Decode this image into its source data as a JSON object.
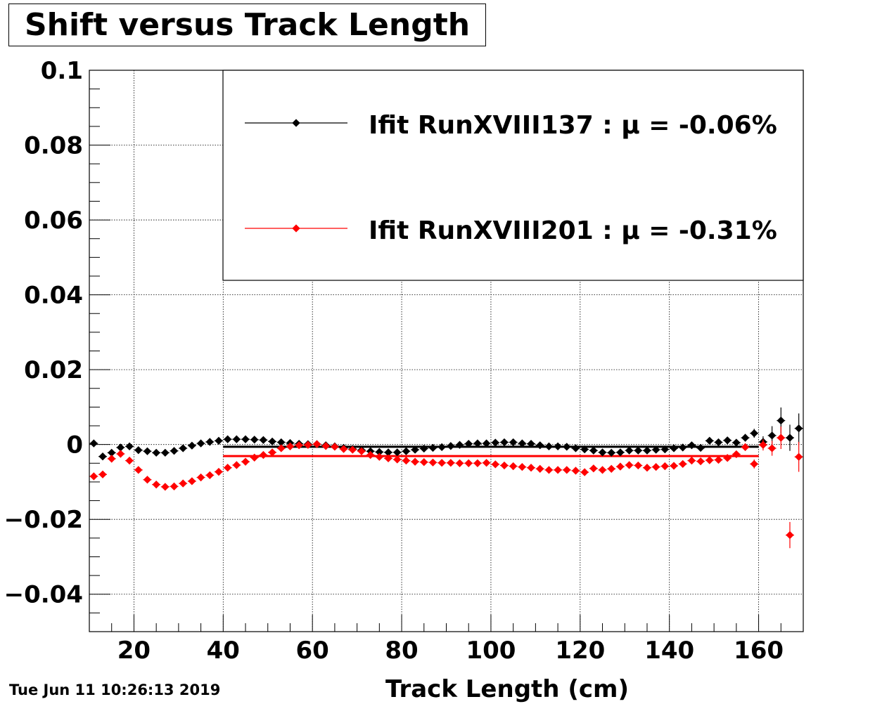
{
  "timestamp": "Tue Jun 11 10:26:13 2019",
  "colors": {
    "series_a": "#000000",
    "series_b": "#ff0000",
    "grid": "#000000",
    "background": "#ffffff"
  },
  "chart_data": {
    "type": "scatter",
    "title": "Shift versus Track Length",
    "xlabel": "Track Length (cm)",
    "ylabel": "",
    "xlim": [
      10,
      170
    ],
    "ylim": [
      -0.05,
      0.1
    ],
    "xticks": [
      20,
      40,
      60,
      80,
      100,
      120,
      140,
      160
    ],
    "xtick_labels": [
      "20",
      "40",
      "60",
      "80",
      "100",
      "120",
      "140",
      "160"
    ],
    "yticks": [
      -0.04,
      -0.02,
      0,
      0.02,
      0.04,
      0.06,
      0.08,
      0.1
    ],
    "ytick_labels": [
      "−0.04",
      "−0.02",
      "0",
      "0.02",
      "0.04",
      "0.06",
      "0.08",
      "0.1"
    ],
    "grid": true,
    "legend_position": "top-right",
    "series": [
      {
        "name": "Ifit RunXVIII137 : μ = -0.06%",
        "color": "#000000",
        "mean_line": {
          "y": -0.0006,
          "x_range": [
            40,
            160
          ]
        },
        "x": [
          11,
          13,
          15,
          17,
          19,
          21,
          23,
          25,
          27,
          29,
          31,
          33,
          35,
          37,
          39,
          41,
          43,
          45,
          47,
          49,
          51,
          53,
          55,
          57,
          59,
          61,
          63,
          65,
          67,
          69,
          71,
          73,
          75,
          77,
          79,
          81,
          83,
          85,
          87,
          89,
          91,
          93,
          95,
          97,
          99,
          101,
          103,
          105,
          107,
          109,
          111,
          113,
          115,
          117,
          119,
          121,
          123,
          125,
          127,
          129,
          131,
          133,
          135,
          137,
          139,
          141,
          143,
          145,
          147,
          149,
          151,
          153,
          155,
          157,
          159,
          161,
          163,
          165,
          167,
          169
        ],
        "y": [
          0.0003,
          -0.0032,
          -0.0022,
          -0.0008,
          -0.0005,
          -0.0015,
          -0.0018,
          -0.0022,
          -0.0022,
          -0.0017,
          -0.001,
          -0.0003,
          0.0003,
          0.0007,
          0.001,
          0.0014,
          0.0014,
          0.0014,
          0.0013,
          0.0012,
          0.0008,
          0.0006,
          0.0004,
          0.0002,
          0.0001,
          0.0001,
          -0.0002,
          -0.0005,
          -0.0009,
          -0.0012,
          -0.0015,
          -0.0018,
          -0.002,
          -0.0021,
          -0.0021,
          -0.0018,
          -0.0014,
          -0.0011,
          -0.0009,
          -0.0007,
          -0.0004,
          -0.0001,
          0.0002,
          0.0003,
          0.0003,
          0.0005,
          0.0006,
          0.0006,
          0.0003,
          0.0002,
          -0.0002,
          -0.0005,
          -0.0005,
          -0.0006,
          -0.001,
          -0.0013,
          -0.0016,
          -0.0021,
          -0.0022,
          -0.0021,
          -0.0016,
          -0.0016,
          -0.0016,
          -0.0014,
          -0.0013,
          -0.001,
          -0.0008,
          -0.0002,
          -0.0009,
          0.001,
          0.0006,
          0.0011,
          0.0005,
          0.0018,
          0.003,
          0.0007,
          0.0024,
          0.0064,
          0.0018,
          0.0043
        ],
        "y_err": [
          0.0003,
          0.0003,
          0.0003,
          0.0003,
          0.0003,
          0.0003,
          0.0003,
          0.0003,
          0.0003,
          0.0003,
          0.0003,
          0.0003,
          0.0003,
          0.0003,
          0.0003,
          0.0003,
          0.0003,
          0.0003,
          0.0003,
          0.0003,
          0.0003,
          0.0003,
          0.0003,
          0.0003,
          0.0003,
          0.0003,
          0.0003,
          0.0003,
          0.0003,
          0.0003,
          0.0003,
          0.0003,
          0.0003,
          0.0003,
          0.0003,
          0.0003,
          0.0003,
          0.0003,
          0.0003,
          0.0003,
          0.0003,
          0.0003,
          0.0003,
          0.0003,
          0.0003,
          0.0003,
          0.0003,
          0.0003,
          0.0003,
          0.0003,
          0.0003,
          0.0003,
          0.0003,
          0.0003,
          0.0003,
          0.0003,
          0.0003,
          0.0003,
          0.0003,
          0.0003,
          0.0003,
          0.0003,
          0.0003,
          0.0003,
          0.0003,
          0.0003,
          0.0003,
          0.0004,
          0.0005,
          0.0005,
          0.0006,
          0.0008,
          0.0009,
          0.001,
          0.0012,
          0.0015,
          0.0025,
          0.0035,
          0.0035,
          0.004
        ]
      },
      {
        "name": "Ifit RunXVIII201 : μ = -0.31%",
        "color": "#ff0000",
        "mean_line": {
          "y": -0.0031,
          "x_range": [
            40,
            160
          ]
        },
        "x": [
          11,
          13,
          15,
          17,
          19,
          21,
          23,
          25,
          27,
          29,
          31,
          33,
          35,
          37,
          39,
          41,
          43,
          45,
          47,
          49,
          51,
          53,
          55,
          57,
          59,
          61,
          63,
          65,
          67,
          69,
          71,
          73,
          75,
          77,
          79,
          81,
          83,
          85,
          87,
          89,
          91,
          93,
          95,
          97,
          99,
          101,
          103,
          105,
          107,
          109,
          111,
          113,
          115,
          117,
          119,
          121,
          123,
          125,
          127,
          129,
          131,
          133,
          135,
          137,
          139,
          141,
          143,
          145,
          147,
          149,
          151,
          153,
          155,
          157,
          159,
          161,
          163,
          165,
          167,
          169
        ],
        "y": [
          -0.0085,
          -0.008,
          -0.0038,
          -0.0025,
          -0.0043,
          -0.0068,
          -0.0094,
          -0.0107,
          -0.0113,
          -0.0112,
          -0.0104,
          -0.0098,
          -0.0088,
          -0.0082,
          -0.0073,
          -0.0062,
          -0.0055,
          -0.0046,
          -0.0035,
          -0.0028,
          -0.0021,
          -0.001,
          -0.0005,
          -0.0002,
          -0.0001,
          0.0001,
          -0.0004,
          -0.0006,
          -0.0012,
          -0.0014,
          -0.0018,
          -0.0028,
          -0.0033,
          -0.0037,
          -0.004,
          -0.0043,
          -0.0046,
          -0.0047,
          -0.0048,
          -0.0049,
          -0.0049,
          -0.005,
          -0.005,
          -0.005,
          -0.0049,
          -0.0053,
          -0.0056,
          -0.0058,
          -0.006,
          -0.0062,
          -0.0065,
          -0.0068,
          -0.0068,
          -0.0068,
          -0.007,
          -0.0074,
          -0.0064,
          -0.0068,
          -0.0065,
          -0.0059,
          -0.0055,
          -0.0056,
          -0.0062,
          -0.006,
          -0.0058,
          -0.0057,
          -0.0052,
          -0.0043,
          -0.0045,
          -0.0042,
          -0.0041,
          -0.0036,
          -0.0026,
          -0.0007,
          -0.0052,
          -0.0001,
          -0.001,
          0.0018,
          -0.0242,
          -0.0033
        ],
        "y_err": [
          0.0003,
          0.0003,
          0.0003,
          0.0003,
          0.0003,
          0.0003,
          0.0003,
          0.0003,
          0.0003,
          0.0003,
          0.0003,
          0.0003,
          0.0003,
          0.0003,
          0.0003,
          0.0003,
          0.0003,
          0.0003,
          0.0003,
          0.0003,
          0.0003,
          0.0003,
          0.0003,
          0.0003,
          0.0003,
          0.0003,
          0.0003,
          0.0003,
          0.0003,
          0.0003,
          0.0003,
          0.0003,
          0.0003,
          0.0003,
          0.0003,
          0.0003,
          0.0003,
          0.0003,
          0.0003,
          0.0003,
          0.0003,
          0.0003,
          0.0003,
          0.0003,
          0.0003,
          0.0003,
          0.0003,
          0.0003,
          0.0003,
          0.0003,
          0.0003,
          0.0003,
          0.0003,
          0.0003,
          0.0003,
          0.0003,
          0.0003,
          0.0003,
          0.0003,
          0.0003,
          0.0003,
          0.0003,
          0.0003,
          0.0003,
          0.0003,
          0.0003,
          0.0003,
          0.0004,
          0.0005,
          0.0005,
          0.0006,
          0.0008,
          0.0009,
          0.001,
          0.0012,
          0.0015,
          0.002,
          0.003,
          0.0035,
          0.004
        ]
      }
    ]
  }
}
